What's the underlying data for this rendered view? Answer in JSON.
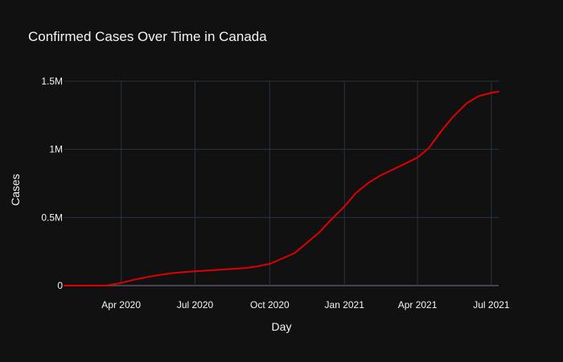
{
  "chart_data": {
    "type": "line",
    "title": "Confirmed Cases Over Time in Canada",
    "xlabel": "Day",
    "ylabel": "Cases",
    "xlim": [
      "2020-01-22",
      "2021-07-10"
    ],
    "ylim": [
      0,
      1500000
    ],
    "x_ticks": [
      {
        "date": "2020-04-01",
        "label": "Apr 2020"
      },
      {
        "date": "2020-07-01",
        "label": "Jul 2020"
      },
      {
        "date": "2020-10-01",
        "label": "Oct 2020"
      },
      {
        "date": "2021-01-01",
        "label": "Jan 2021"
      },
      {
        "date": "2021-04-01",
        "label": "Apr 2021"
      },
      {
        "date": "2021-07-01",
        "label": "Jul 2021"
      }
    ],
    "y_ticks": [
      {
        "value": 0,
        "label": "0"
      },
      {
        "value": 500000,
        "label": "0.5M"
      },
      {
        "value": 1000000,
        "label": "1M"
      },
      {
        "value": 1500000,
        "label": "1.5M"
      }
    ],
    "grid": true,
    "legend": "none",
    "series": [
      {
        "color": "#e00000",
        "points": [
          [
            "2020-01-22",
            0
          ],
          [
            "2020-03-01",
            100
          ],
          [
            "2020-03-15",
            2000
          ],
          [
            "2020-04-01",
            20000
          ],
          [
            "2020-04-15",
            40000
          ],
          [
            "2020-05-01",
            60000
          ],
          [
            "2020-05-15",
            75000
          ],
          [
            "2020-06-01",
            90000
          ],
          [
            "2020-06-15",
            98000
          ],
          [
            "2020-07-01",
            105000
          ],
          [
            "2020-07-15",
            110000
          ],
          [
            "2020-08-01",
            117000
          ],
          [
            "2020-08-15",
            122000
          ],
          [
            "2020-09-01",
            128000
          ],
          [
            "2020-09-15",
            140000
          ],
          [
            "2020-10-01",
            160000
          ],
          [
            "2020-10-15",
            195000
          ],
          [
            "2020-11-01",
            240000
          ],
          [
            "2020-11-15",
            310000
          ],
          [
            "2020-12-01",
            390000
          ],
          [
            "2020-12-15",
            480000
          ],
          [
            "2021-01-01",
            580000
          ],
          [
            "2021-01-15",
            680000
          ],
          [
            "2021-02-01",
            760000
          ],
          [
            "2021-02-15",
            810000
          ],
          [
            "2021-03-01",
            850000
          ],
          [
            "2021-03-15",
            890000
          ],
          [
            "2021-04-01",
            940000
          ],
          [
            "2021-04-15",
            1010000
          ],
          [
            "2021-05-01",
            1140000
          ],
          [
            "2021-05-15",
            1240000
          ],
          [
            "2021-06-01",
            1340000
          ],
          [
            "2021-06-15",
            1390000
          ],
          [
            "2021-07-01",
            1415000
          ],
          [
            "2021-07-10",
            1425000
          ]
        ]
      }
    ]
  }
}
